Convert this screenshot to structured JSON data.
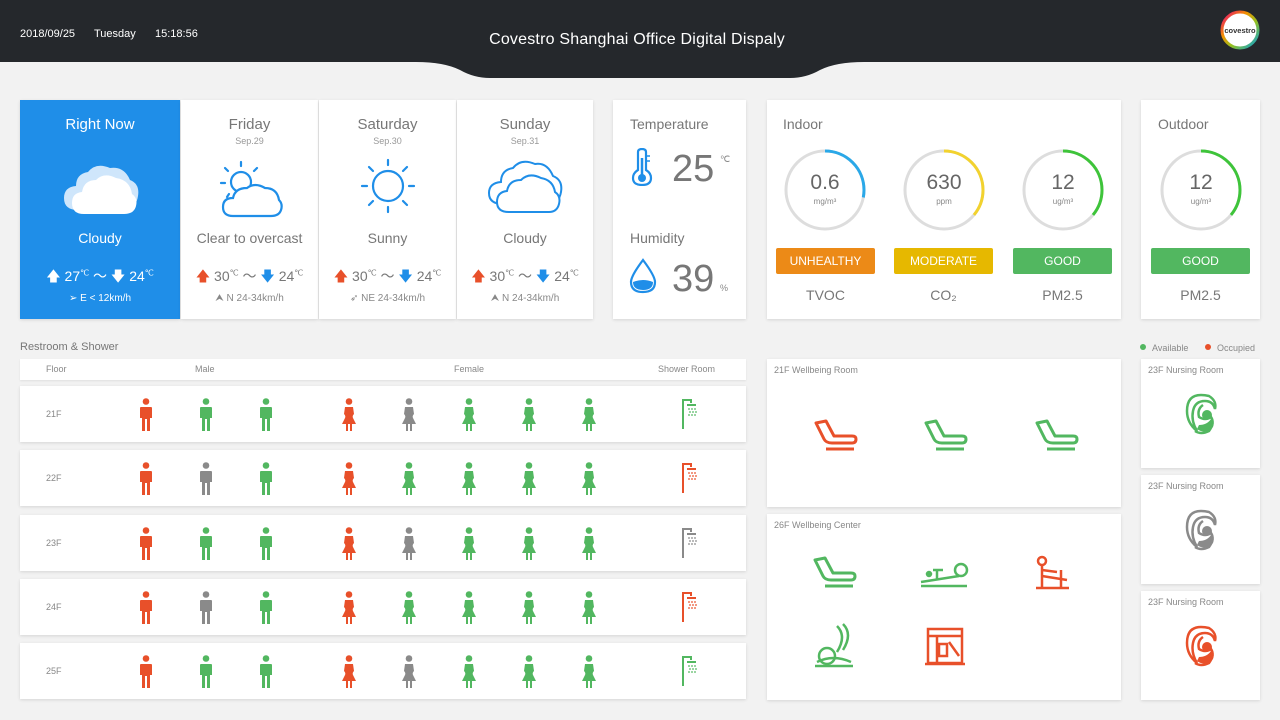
{
  "header": {
    "date": "2018/09/25",
    "weekday": "Tuesday",
    "time": "15:18:56",
    "title": "Covestro Shanghai Office Digital Dispaly",
    "logo_text": "covestro"
  },
  "weather": [
    {
      "day": "Right Now",
      "date": "",
      "icon": "cloud-icon",
      "condition": "Cloudy",
      "high": "27",
      "low": "24",
      "wind": "E < 12km/h"
    },
    {
      "day": "Friday",
      "date": "Sep.29",
      "icon": "partly-cloudy-icon",
      "condition": "Clear to overcast",
      "high": "30",
      "low": "24",
      "wind": "N 24-34km/h"
    },
    {
      "day": "Saturday",
      "date": "Sep.30",
      "icon": "sun-icon",
      "condition": "Sunny",
      "high": "30",
      "low": "24",
      "wind": "NE 24-34km/h"
    },
    {
      "day": "Sunday",
      "date": "Sep.31",
      "icon": "cloud-icon",
      "condition": "Cloudy",
      "high": "30",
      "low": "24",
      "wind": "N 24-34km/h"
    }
  ],
  "degree_unit": "℃",
  "tilde": "～",
  "climate": {
    "temp_label": "Temperature",
    "temp_value": "25",
    "temp_unit": "℃",
    "hum_label": "Humidity",
    "hum_value": "39",
    "hum_unit": "%"
  },
  "indoor": {
    "title": "Indoor",
    "items": [
      {
        "value": "0.6",
        "unit": "mg/m³",
        "status": "UNHEALTHY",
        "name": "TVOC",
        "color": "#ec8a17",
        "ring": "#2aa8e8",
        "fraction": 0.28
      },
      {
        "value": "630",
        "unit": "ppm",
        "status": "MODERATE",
        "name": "CO₂",
        "color": "#e6b800",
        "ring": "#f2d22e",
        "fraction": 0.36
      },
      {
        "value": "12",
        "unit": "ug/m³",
        "status": "GOOD",
        "name": "PM2.5",
        "color": "#52b760",
        "ring": "#3ec43a",
        "fraction": 0.36
      }
    ]
  },
  "outdoor": {
    "title": "Outdoor",
    "value": "12",
    "unit": "ug/m³",
    "status": "GOOD",
    "name": "PM2.5",
    "color": "#52b760",
    "ring": "#3ec43a",
    "fraction": 0.36
  },
  "restroom": {
    "title": "Restroom & Shower",
    "headers": {
      "floor": "Floor",
      "male": "Male",
      "female": "Female",
      "shower": "Shower Room"
    },
    "rows": [
      {
        "floor": "21F",
        "male": [
          "o",
          "a",
          "a"
        ],
        "female": [
          "o",
          "u",
          "a",
          "a",
          "a"
        ],
        "shower": "a"
      },
      {
        "floor": "22F",
        "male": [
          "o",
          "u",
          "a"
        ],
        "female": [
          "o",
          "a",
          "a",
          "a",
          "a"
        ],
        "shower": "o"
      },
      {
        "floor": "23F",
        "male": [
          "o",
          "a",
          "a"
        ],
        "female": [
          "o",
          "u",
          "a",
          "a",
          "a"
        ],
        "shower": "u"
      },
      {
        "floor": "24F",
        "male": [
          "o",
          "u",
          "a"
        ],
        "female": [
          "o",
          "a",
          "a",
          "a",
          "a"
        ],
        "shower": "o"
      },
      {
        "floor": "25F",
        "male": [
          "o",
          "a",
          "a"
        ],
        "female": [
          "o",
          "u",
          "a",
          "a",
          "a"
        ],
        "shower": "a"
      }
    ]
  },
  "legend": {
    "available": "Available",
    "occupied": "Occupied"
  },
  "colors": {
    "available": "#52b760",
    "occupied": "#e8502a",
    "unknown": "#8a8a8a",
    "accent": "#1f8ee8"
  },
  "wellbeing_room": {
    "title": "21F  Wellbeing Room",
    "chairs": [
      "o",
      "a",
      "a"
    ]
  },
  "wellbeing_center": {
    "title": "26F  Wellbeing Center"
  },
  "nursing": [
    {
      "title": "23F  Nursing Room",
      "state": "a"
    },
    {
      "title": "23F  Nursing Room",
      "state": "u"
    },
    {
      "title": "23F  Nursing Room",
      "state": "o"
    }
  ]
}
